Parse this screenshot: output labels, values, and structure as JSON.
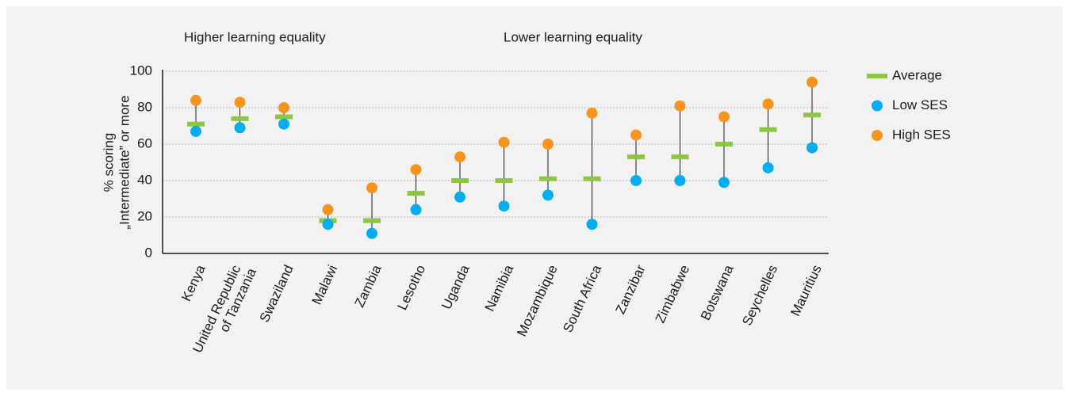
{
  "chart_data": {
    "type": "range-dot",
    "annotations": [
      "Higher learning equality",
      "Lower learning equality"
    ],
    "ylabel": [
      "% scoring",
      "„Intermediate” or more"
    ],
    "categories": [
      "Kenya",
      "United Republic of Tanzania",
      "Swaziland",
      "Malawi",
      "Zambia",
      "Lesotho",
      "Uganda",
      "Namibia",
      "Mozambique",
      "South Africa",
      "Zanzibar",
      "Zimbabwe",
      "Botswana",
      "Seychelles",
      "Mauritius"
    ],
    "series": [
      {
        "name": "Average",
        "color": "#8dc63f",
        "values": [
          71,
          74,
          75,
          18,
          18,
          33,
          40,
          40,
          41,
          41,
          53,
          53,
          60,
          68,
          76
        ]
      },
      {
        "name": "Low SES",
        "color": "#00aeef",
        "values": [
          67,
          69,
          71,
          16,
          11,
          24,
          31,
          26,
          32,
          16,
          40,
          40,
          39,
          47,
          58
        ]
      },
      {
        "name": "High SES",
        "color": "#f7941d",
        "values": [
          84,
          83,
          80,
          24,
          36,
          46,
          53,
          61,
          60,
          77,
          65,
          81,
          75,
          82,
          94
        ]
      }
    ],
    "ylim": [
      0,
      100
    ],
    "yticks": [
      0,
      20,
      40,
      60,
      80,
      100
    ],
    "grid": true,
    "legend": "right"
  }
}
